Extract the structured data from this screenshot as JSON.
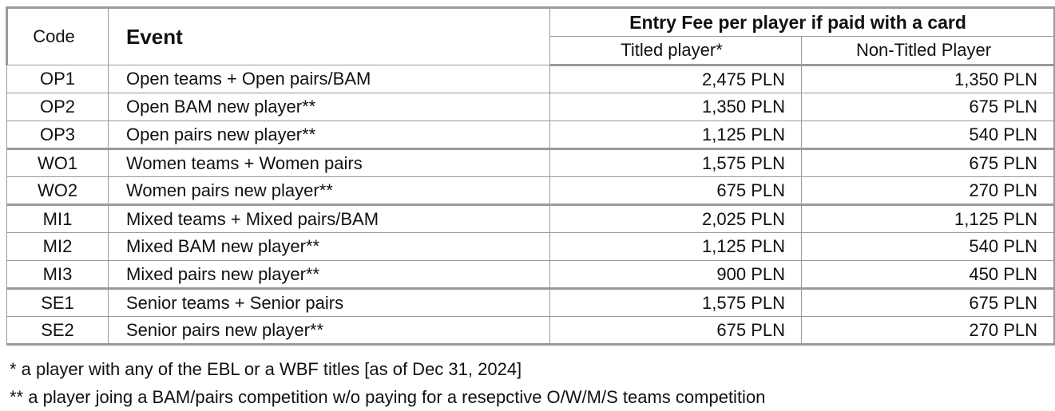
{
  "header": {
    "code": "Code",
    "event": "Event",
    "entry_fee": "Entry Fee per player if paid with a card",
    "titled": "Titled player*",
    "non_titled": "Non-Titled Player"
  },
  "rows": [
    {
      "code": "OP1",
      "event": "Open teams + Open pairs/BAM",
      "titled": "2,475 PLN",
      "non_titled": "1,350 PLN"
    },
    {
      "code": "OP2",
      "event": "Open BAM new player**",
      "titled": "1,350 PLN",
      "non_titled": "675 PLN"
    },
    {
      "code": "OP3",
      "event": "Open pairs new player**",
      "titled": "1,125 PLN",
      "non_titled": "540 PLN"
    },
    {
      "code": "WO1",
      "event": "Women teams + Women pairs",
      "titled": "1,575 PLN",
      "non_titled": "675 PLN"
    },
    {
      "code": "WO2",
      "event": "Women pairs new player**",
      "titled": "675 PLN",
      "non_titled": "270 PLN"
    },
    {
      "code": "MI1",
      "event": "Mixed teams + Mixed pairs/BAM",
      "titled": "2,025 PLN",
      "non_titled": "1,125 PLN"
    },
    {
      "code": "MI2",
      "event": "Mixed BAM new player**",
      "titled": "1,125 PLN",
      "non_titled": "540 PLN"
    },
    {
      "code": "MI3",
      "event": "Mixed pairs new player**",
      "titled": "900 PLN",
      "non_titled": "450 PLN"
    },
    {
      "code": "SE1",
      "event": "Senior teams + Senior pairs",
      "titled": "1,575 PLN",
      "non_titled": "675 PLN"
    },
    {
      "code": "SE2",
      "event": "Senior pairs new player**",
      "titled": "675 PLN",
      "non_titled": "270 PLN"
    }
  ],
  "notes": {
    "note1": "* a player with any of the EBL or a WBF titles [as of Dec 31, 2024]",
    "note2": "** a player joing a BAM/pairs competition w/o paying for a resepctive O/W/M/S teams competition"
  }
}
